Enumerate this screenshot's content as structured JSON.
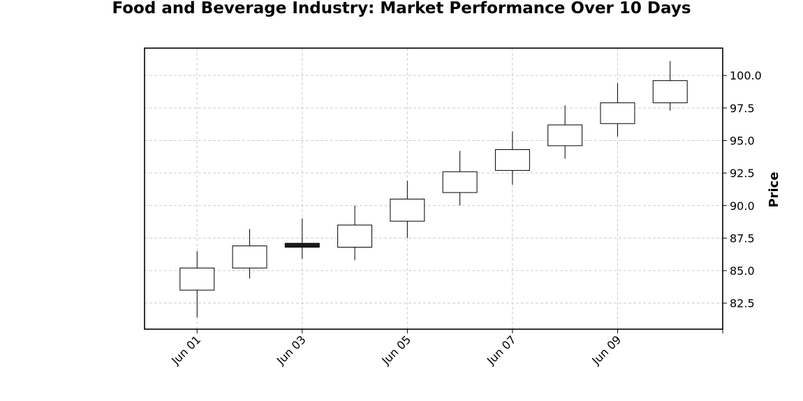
{
  "chart_data": {
    "type": "candlestick",
    "title": "Food and Beverage Industry: Market Performance Over 10 Days",
    "xlabel": "",
    "ylabel": "Price",
    "y_axis_position": "right",
    "ylim": [
      80.5,
      102.1
    ],
    "yticks": [
      "82.5",
      "85.0",
      "87.5",
      "90.0",
      "92.5",
      "95.0",
      "97.5",
      "100.0"
    ],
    "xlim": [
      "2023-05-31",
      "2023-06-11"
    ],
    "xticks": [
      {
        "date": "2023-06-01",
        "label": "Jun 01"
      },
      {
        "date": "2023-06-03",
        "label": "Jun 03"
      },
      {
        "date": "2023-06-05",
        "label": "Jun 05"
      },
      {
        "date": "2023-06-07",
        "label": "Jun 07"
      },
      {
        "date": "2023-06-09",
        "label": "Jun 09"
      },
      {
        "date": "2023-06-11",
        "label": ""
      }
    ],
    "grid": true,
    "colors": {
      "up": "#ffffff",
      "down": "#1a1a1a",
      "edge": "#000000",
      "grid": "#cccccc"
    },
    "candles": [
      {
        "date": "2023-06-01",
        "open": 83.5,
        "high": 86.5,
        "low": 81.4,
        "close": 85.2
      },
      {
        "date": "2023-06-02",
        "open": 85.2,
        "high": 88.2,
        "low": 84.4,
        "close": 86.9
      },
      {
        "date": "2023-06-03",
        "open": 87.1,
        "high": 89.0,
        "low": 85.9,
        "close": 86.8
      },
      {
        "date": "2023-06-04",
        "open": 86.8,
        "high": 90.0,
        "low": 85.8,
        "close": 88.5
      },
      {
        "date": "2023-06-05",
        "open": 88.8,
        "high": 91.9,
        "low": 87.5,
        "close": 90.5
      },
      {
        "date": "2023-06-06",
        "open": 91.0,
        "high": 94.2,
        "low": 90.0,
        "close": 92.6
      },
      {
        "date": "2023-06-07",
        "open": 92.7,
        "high": 95.7,
        "low": 91.6,
        "close": 94.3
      },
      {
        "date": "2023-06-08",
        "open": 94.6,
        "high": 97.7,
        "low": 93.6,
        "close": 96.2
      },
      {
        "date": "2023-06-09",
        "open": 96.3,
        "high": 99.4,
        "low": 95.3,
        "close": 97.9
      },
      {
        "date": "2023-06-10",
        "open": 97.9,
        "high": 101.1,
        "low": 97.3,
        "close": 99.6
      }
    ]
  }
}
